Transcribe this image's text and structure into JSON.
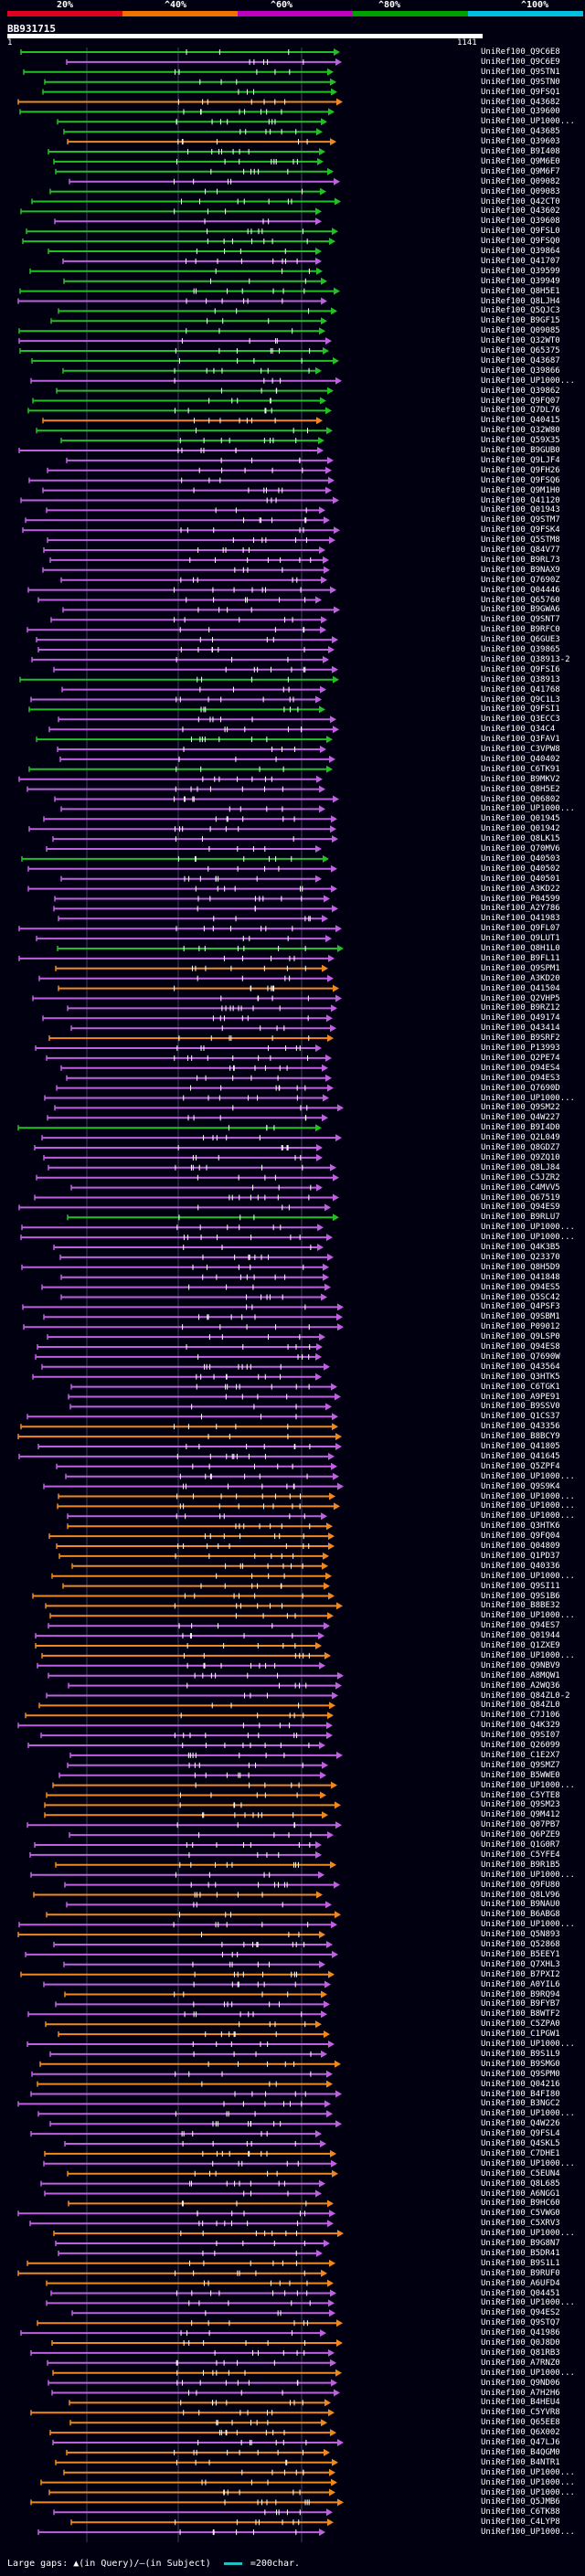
{
  "scale": {
    "ticks": [
      "20%",
      "^40%",
      "^60%",
      "^80%",
      "^100%"
    ],
    "band_colors": [
      "#e00020",
      "#f07000",
      "#c000c0",
      "#00a000",
      "#00c0e0"
    ]
  },
  "query": {
    "id": "BB931715",
    "start": "1",
    "end": "1141"
  },
  "colors": {
    "green": "#22c022",
    "magenta": "#c060e0",
    "orange": "#f08820",
    "gap": "#ffff66"
  },
  "footer": {
    "text": "Large gaps: ▲(in Query)/–(in Subject)",
    "legend": "=200char."
  },
  "hits": [
    "UniRef100_Q9C6E8",
    "UniRef100_Q9C6E9",
    "UniRef100_Q9STN1",
    "UniRef100_Q9STN0",
    "UniRef100_Q9FSQ1",
    "UniRef100_Q43682",
    "UniRef100_Q39600",
    "UniRef100_UP1000...",
    "UniRef100_Q43685",
    "UniRef100_Q39603",
    "UniRef100_B9I408",
    "UniRef100_Q9M6E0",
    "UniRef100_Q9M6F7",
    "UniRef100_Q09082",
    "UniRef100_Q09083",
    "UniRef100_Q42CT0",
    "UniRef100_Q43602",
    "UniRef100_Q39608",
    "UniRef100_Q9FSL0",
    "UniRef100_Q9FSQ0",
    "UniRef100_Q39864",
    "UniRef100_Q41707",
    "UniRef100_Q39599",
    "UniRef100_Q39949",
    "UniRef100_Q8H5E1",
    "UniRef100_Q8LJH4",
    "UniRef100_Q5QJC3",
    "UniRef100_B9GF15",
    "UniRef100_Q09085",
    "UniRef100_Q32WT0",
    "UniRef100_Q65375",
    "UniRef100_Q43687",
    "UniRef100_Q39866",
    "UniRef100_UP1000...",
    "UniRef100_Q39862",
    "UniRef100_Q9FQ07",
    "UniRef100_Q7DL76",
    "UniRef100_Q40415",
    "UniRef100_Q32W80",
    "UniRef100_Q59X35",
    "UniRef100_B9GUB0",
    "UniRef100_Q9LJF4",
    "UniRef100_Q9FH26",
    "UniRef100_Q9FSQ6",
    "UniRef100_Q9M1H0",
    "UniRef100_Q41120",
    "UniRef100_Q01943",
    "UniRef100_Q9STM7",
    "UniRef100_Q9FSK4",
    "UniRef100_Q5STM8",
    "UniRef100_Q84V77",
    "UniRef100_B9RL73",
    "UniRef100_B9NAX9",
    "UniRef100_Q7690Z",
    "UniRef100_Q04446",
    "UniRef100_Q65760",
    "UniRef100_B9GWA6",
    "UniRef100_Q9SNT7",
    "UniRef100_B9RFC0",
    "UniRef100_Q6GUE3",
    "UniRef100_Q39865",
    "UniRef100_Q38913-2",
    "UniRef100_Q9FSI6",
    "UniRef100_Q38913",
    "UniRef100_Q41768",
    "UniRef100_Q9C1L3",
    "UniRef100_Q9FSI1",
    "UniRef100_Q3ECC3",
    "UniRef100_Q34C4",
    "UniRef100_Q3FAV1",
    "UniRef100_C3VPW8",
    "UniRef100_Q40402",
    "UniRef100_C6TK91",
    "UniRef100_B9MKV2",
    "UniRef100_Q8H5E2",
    "UniRef100_Q06802",
    "UniRef100_UP1000...",
    "UniRef100_Q01945",
    "UniRef100_Q01942",
    "UniRef100_Q8LK15",
    "UniRef100_Q70MV6",
    "UniRef100_Q40503",
    "UniRef100_Q40502",
    "UniRef100_Q40501",
    "UniRef100_A3KD22",
    "UniRef100_P04599",
    "UniRef100_A2Y786",
    "UniRef100_Q41983",
    "UniRef100_Q9FL07",
    "UniRef100_Q9LUT1",
    "UniRef100_Q8H1L0",
    "UniRef100_B9FL11",
    "UniRef100_Q9SPM1",
    "UniRef100_A3KD20",
    "UniRef100_Q41504",
    "UniRef100_Q2VHP5",
    "UniRef100_B9RZ12",
    "UniRef100_Q49174",
    "UniRef100_Q43414",
    "UniRef100_B9SRF2",
    "UniRef100_P13993",
    "UniRef100_Q2PE74",
    "UniRef100_Q94ES4",
    "UniRef100_Q94ES3",
    "UniRef100_Q7690D",
    "UniRef100_UP1000...",
    "UniRef100_Q9SM22",
    "UniRef100_Q4W227",
    "UniRef100_B9I4D0",
    "UniRef100_Q2L049",
    "UniRef100_Q8GDZ7",
    "UniRef100_Q9ZQ10",
    "UniRef100_Q8LJ84",
    "UniRef100_C5JZR2",
    "UniRef100_C4MVV5",
    "UniRef100_Q67519",
    "UniRef100_Q94ES9",
    "UniRef100_B9RLU7",
    "UniRef100_UP1000...",
    "UniRef100_UP1000...",
    "UniRef100_Q4K3B5",
    "UniRef100_Q23370",
    "UniRef100_Q8H5D9",
    "UniRef100_Q41848",
    "UniRef100_Q94ES5",
    "UniRef100_Q5SC42",
    "UniRef100_Q4PSF3",
    "UniRef100_Q9SBM1",
    "UniRef100_P09012",
    "UniRef100_Q9LSP0",
    "UniRef100_Q94ES8",
    "UniRef100_Q7690W",
    "UniRef100_Q43564",
    "UniRef100_Q3HTK5",
    "UniRef100_C6TGK1",
    "UniRef100_A9PE91",
    "UniRef100_B9SSV0",
    "UniRef100_Q1CS37",
    "UniRef100_Q43356",
    "UniRef100_B8BCY9",
    "UniRef100_Q41805",
    "UniRef100_Q41645",
    "UniRef100_Q5ZPF4",
    "UniRef100_UP1000...",
    "UniRef100_Q9S9K4",
    "UniRef100_UP1000...",
    "UniRef100_UP1000...",
    "UniRef100_UP1000...",
    "UniRef100_Q3HTK6",
    "UniRef100_Q9FQ04",
    "UniRef100_Q04809",
    "UniRef100_Q1PD37",
    "UniRef100_Q40336",
    "UniRef100_UP1000...",
    "UniRef100_Q9SI11",
    "UniRef100_Q9S1B6",
    "UniRef100_B8BE32",
    "UniRef100_UP1000...",
    "UniRef100_Q94ES7",
    "UniRef100_Q01944",
    "UniRef100_Q1ZXE9",
    "UniRef100_UP1000...",
    "UniRef100_Q9NBV9",
    "UniRef100_A8MQW1",
    "UniRef100_A2WQ36",
    "UniRef100_Q84ZL0-2",
    "UniRef100_Q84ZL0",
    "UniRef100_C7J106",
    "UniRef100_Q4K329",
    "UniRef100_Q9SI07",
    "UniRef100_Q26099",
    "UniRef100_C1E2X7",
    "UniRef100_Q9SMZ7",
    "UniRef100_B5WWE0",
    "UniRef100_UP1000...",
    "UniRef100_C5YTE8",
    "UniRef100_Q9SM23",
    "UniRef100_Q9M412",
    "UniRef100_Q07PB7",
    "UniRef100_Q6PZE9",
    "UniRef100_Q1G0R7",
    "UniRef100_C5YFE4",
    "UniRef100_B9R1B5",
    "UniRef100_UP1000...",
    "UniRef100_Q9FU80",
    "UniRef100_Q8LV96",
    "UniRef100_B9NAU0",
    "UniRef100_B6ABG8",
    "UniRef100_UP1000...",
    "UniRef100_Q5N893",
    "UniRef100_Q52868",
    "UniRef100_B5EEY1",
    "UniRef100_Q7XHL3",
    "UniRef100_B7PXI2",
    "UniRef100_A0YIL6",
    "UniRef100_B9RQ94",
    "UniRef100_B9FYB7",
    "UniRef100_B8WTF2",
    "UniRef100_C5ZPA0",
    "UniRef100_C1PGW1",
    "UniRef100_UP1000...",
    "UniRef100_B9S1L9",
    "UniRef100_B9SMG0",
    "UniRef100_Q9SPM0",
    "UniRef100_Q04216",
    "UniRef100_B4FI80",
    "UniRef100_B3NGC2",
    "UniRef100_UP1000...",
    "UniRef100_Q4W226",
    "UniRef100_Q9FSL4",
    "UniRef100_Q4SKL5",
    "UniRef100_C7DHE1",
    "UniRef100_UP1000...",
    "UniRef100_C5EUN4",
    "UniRef100_Q8L685",
    "UniRef100_A6NGG1",
    "UniRef100_B9HC60",
    "UniRef100_C5VWG0",
    "UniRef100_C5XRV3",
    "UniRef100_UP1000...",
    "UniRef100_B9G8N7",
    "UniRef100_B5DR41",
    "UniRef100_B9S1L1",
    "UniRef100_B9RUF0",
    "UniRef100_A6UFD4",
    "UniRef100_Q04451",
    "UniRef100_UP1000...",
    "UniRef100_Q94ES2",
    "UniRef100_Q9STQ7",
    "UniRef100_Q41986",
    "UniRef100_Q0J8D0",
    "UniRef100_Q81RB3",
    "UniRef100_A7RNZ0",
    "UniRef100_UP1000...",
    "UniRef100_Q9ND06",
    "UniRef100_A7H2H6",
    "UniRef100_B4HEU4",
    "UniRef100_C5YVR8",
    "UniRef100_Q65EE8",
    "UniRef100_Q6X002",
    "UniRef100_Q47LJ6",
    "UniRef100_B4QGM0",
    "UniRef100_B4NTR1",
    "UniRef100_UP1000...",
    "UniRef100_UP1000...",
    "UniRef100_UP1000...",
    "UniRef100_Q5JMB6",
    "UniRef100_C6TK88",
    "UniRef100_C4LYP8",
    "UniRef100_UP1000..."
  ]
}
